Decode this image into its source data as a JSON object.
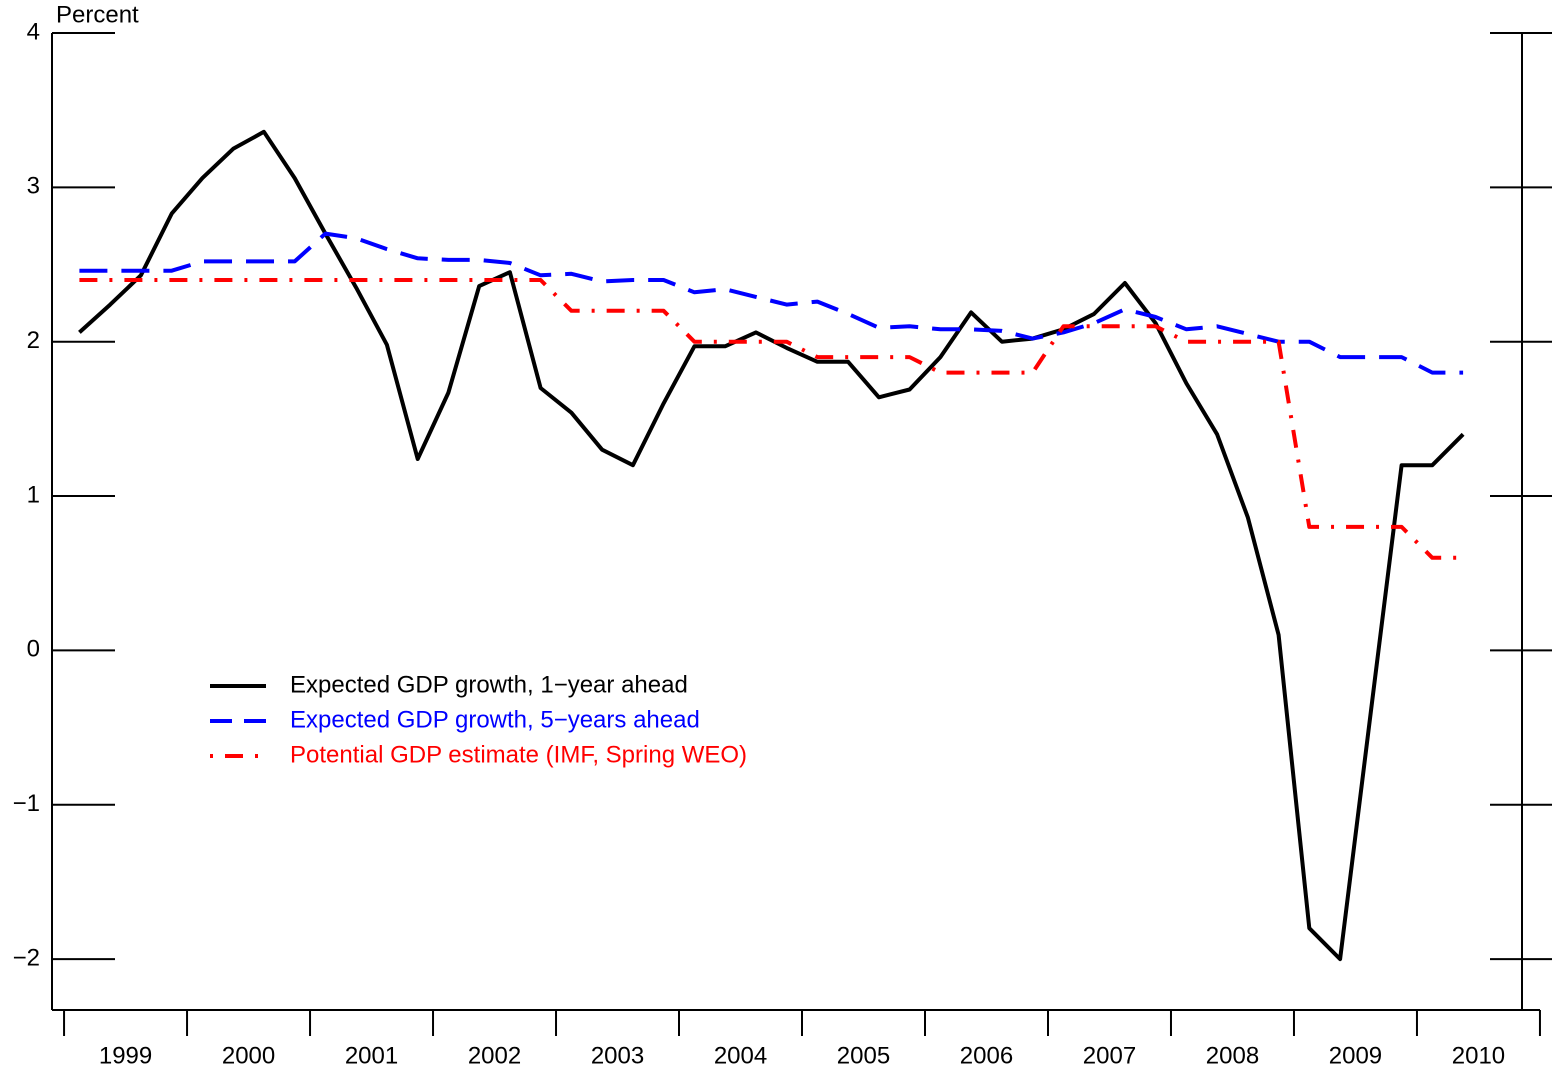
{
  "chart_data": {
    "type": "line",
    "y_label": "Percent",
    "x": [
      1999.125,
      1999.375,
      1999.625,
      1999.875,
      2000.125,
      2000.375,
      2000.625,
      2000.875,
      2001.125,
      2001.375,
      2001.625,
      2001.875,
      2002.125,
      2002.375,
      2002.625,
      2002.875,
      2003.125,
      2003.375,
      2003.625,
      2003.875,
      2004.125,
      2004.375,
      2004.625,
      2004.875,
      2005.125,
      2005.375,
      2005.625,
      2005.875,
      2006.125,
      2006.375,
      2006.625,
      2006.875,
      2007.125,
      2007.375,
      2007.625,
      2007.875,
      2008.125,
      2008.375,
      2008.625,
      2008.875,
      2009.125,
      2009.375,
      2009.625,
      2009.875,
      2010.125,
      2010.375
    ],
    "series": [
      {
        "name": "Expected GDP growth, 1−year ahead",
        "color": "#000000",
        "style": "solid",
        "values": [
          2.06,
          2.24,
          2.43,
          2.83,
          3.06,
          3.25,
          3.36,
          3.06,
          2.7,
          2.35,
          1.98,
          1.24,
          1.67,
          2.36,
          2.45,
          1.7,
          1.54,
          1.3,
          1.2,
          1.6,
          1.97,
          1.97,
          2.06,
          1.96,
          1.87,
          1.87,
          1.64,
          1.69,
          1.9,
          2.19,
          2.0,
          2.02,
          2.08,
          2.18,
          2.38,
          2.12,
          1.73,
          1.4,
          0.86,
          0.1,
          -1.8,
          -2.0,
          -0.4,
          1.2,
          1.2,
          1.4
        ]
      },
      {
        "name": "Expected GDP growth, 5−years ahead",
        "color": "#0000ff",
        "style": "dashed",
        "values": [
          2.46,
          2.46,
          2.46,
          2.46,
          2.52,
          2.52,
          2.52,
          2.52,
          2.7,
          2.67,
          2.6,
          2.54,
          2.53,
          2.53,
          2.51,
          2.43,
          2.44,
          2.39,
          2.4,
          2.4,
          2.32,
          2.34,
          2.29,
          2.24,
          2.26,
          2.18,
          2.09,
          2.1,
          2.08,
          2.08,
          2.07,
          2.02,
          2.06,
          2.12,
          2.21,
          2.16,
          2.08,
          2.1,
          2.05,
          2.0,
          2.0,
          1.9,
          1.9,
          1.9,
          1.8,
          1.8
        ]
      },
      {
        "name": "Potential GDP estimate (IMF, Spring WEO)",
        "color": "#ff0000",
        "style": "dashdot",
        "values": [
          2.4,
          2.4,
          2.4,
          2.4,
          2.4,
          2.4,
          2.4,
          2.4,
          2.4,
          2.4,
          2.4,
          2.4,
          2.4,
          2.4,
          2.4,
          2.4,
          2.2,
          2.2,
          2.2,
          2.2,
          2.0,
          2.0,
          2.0,
          2.0,
          1.9,
          1.9,
          1.9,
          1.9,
          1.8,
          1.8,
          1.8,
          1.8,
          2.1,
          2.1,
          2.1,
          2.1,
          2.0,
          2.0,
          2.0,
          2.0,
          0.8,
          0.8,
          0.8,
          0.8,
          0.6,
          0.6
        ]
      }
    ],
    "xlim": [
      1998.902,
      2010.854
    ],
    "xticks": [
      {
        "value": 1999.5,
        "label": "1999"
      },
      {
        "value": 2000.5,
        "label": "2000"
      },
      {
        "value": 2001.5,
        "label": "2001"
      },
      {
        "value": 2002.5,
        "label": "2002"
      },
      {
        "value": 2003.5,
        "label": "2003"
      },
      {
        "value": 2004.5,
        "label": "2004"
      },
      {
        "value": 2005.5,
        "label": "2005"
      },
      {
        "value": 2006.5,
        "label": "2006"
      },
      {
        "value": 2007.5,
        "label": "2007"
      },
      {
        "value": 2008.5,
        "label": "2008"
      },
      {
        "value": 2009.5,
        "label": "2009"
      },
      {
        "value": 2010.5,
        "label": "2010"
      }
    ],
    "x_boundaries": [
      1999,
      2000,
      2001,
      2002,
      2003,
      2004,
      2005,
      2006,
      2007,
      2008,
      2009,
      2010,
      2011
    ],
    "ylim": [
      -2.33,
      4
    ],
    "yticks": [
      {
        "value": -2,
        "label": "−2"
      },
      {
        "value": -1,
        "label": "−1"
      },
      0,
      1,
      2,
      3,
      4
    ],
    "grid": false,
    "legend": "center-left"
  }
}
